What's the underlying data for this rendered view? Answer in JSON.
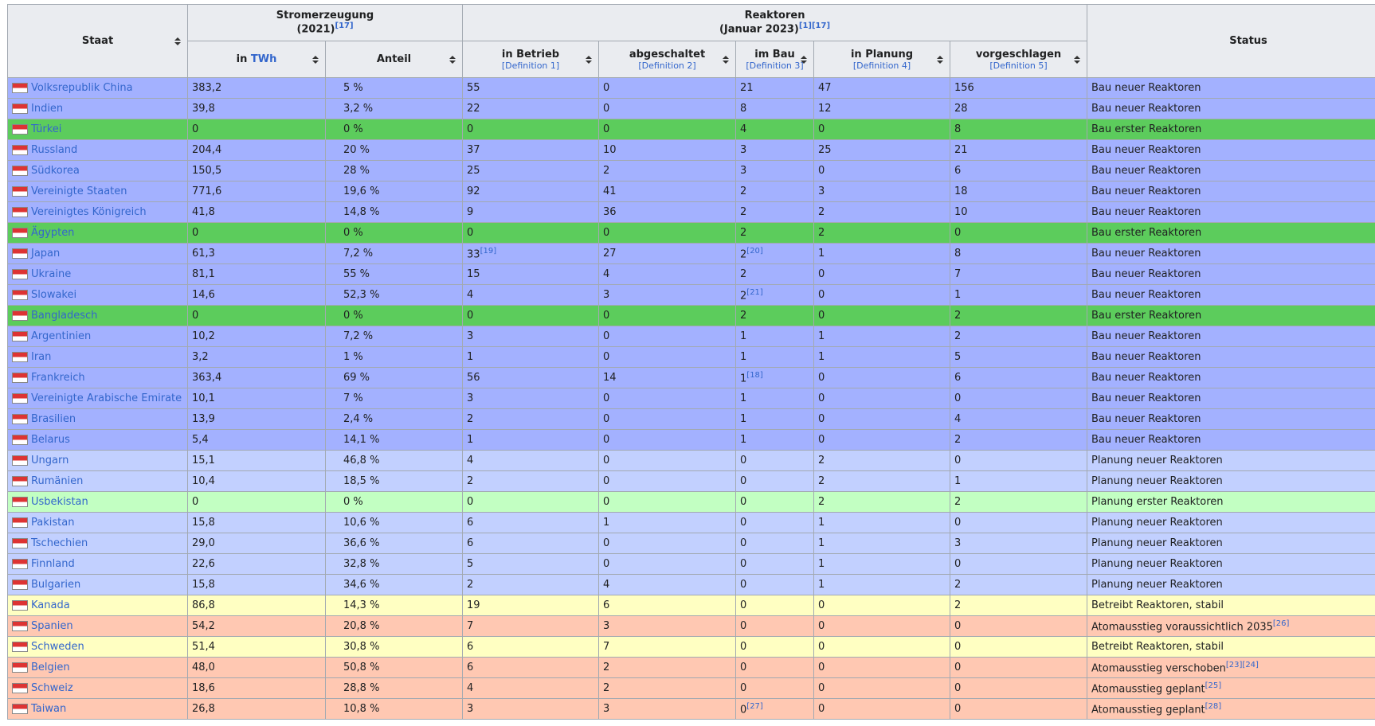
{
  "header": {
    "staat": "Staat",
    "strom": "Stromerzeugung",
    "strom_year": "(2021)",
    "strom_ref": "[17]",
    "reaktoren": "Reaktoren",
    "reaktoren_date": "(Januar 2023)",
    "reaktoren_refs": [
      "[1]",
      "[17]"
    ],
    "status": "Status",
    "sub": [
      {
        "text": "in ",
        "link": "TWh"
      },
      {
        "text": "Anteil"
      },
      {
        "text": "in Betrieb",
        "def": "[Definition 1]"
      },
      {
        "text": "abgeschaltet",
        "def": "[Definition 2]"
      },
      {
        "text": "im Bau",
        "def": "[Definition 3]"
      },
      {
        "text": "in Planung",
        "def": "[Definition 4]"
      },
      {
        "text": "vorgeschlagen",
        "def": "[Definition 5]"
      }
    ]
  },
  "rows": [
    {
      "country": "Volksrepublik China",
      "color": "#a3b1ff",
      "cells": [
        "383,2",
        "5 %",
        "55",
        "0",
        "21",
        "47",
        "156",
        "Bau neuer Reaktoren"
      ]
    },
    {
      "country": "Indien",
      "color": "#a3b1ff",
      "cells": [
        "39,8",
        "3,2 %",
        "22",
        "0",
        "8",
        "12",
        "28",
        "Bau neuer Reaktoren"
      ]
    },
    {
      "country": "Türkei",
      "color": "#5ccc5c",
      "cells": [
        "0",
        "0 %",
        "0",
        "0",
        "4",
        "0",
        "8",
        "Bau erster Reaktoren"
      ]
    },
    {
      "country": "Russland",
      "color": "#a3b1ff",
      "cells": [
        "204,4",
        "20 %",
        "37",
        "10",
        "3",
        "25",
        "21",
        "Bau neuer Reaktoren"
      ]
    },
    {
      "country": "Südkorea",
      "color": "#a3b1ff",
      "cells": [
        "150,5",
        "28 %",
        "25",
        "2",
        "3",
        "0",
        "6",
        "Bau neuer Reaktoren"
      ]
    },
    {
      "country": "Vereinigte Staaten",
      "color": "#a3b1ff",
      "cells": [
        "771,6",
        "19,6 %",
        "92",
        "41",
        "2",
        "3",
        "18",
        "Bau neuer Reaktoren"
      ]
    },
    {
      "country": "Vereinigtes Königreich",
      "color": "#a3b1ff",
      "cells": [
        "41,8",
        "14,8 %",
        "9",
        "36",
        "2",
        "2",
        "10",
        "Bau neuer Reaktoren"
      ]
    },
    {
      "country": "Ägypten",
      "color": "#5ccc5c",
      "cells": [
        "0",
        "0 %",
        "0",
        "0",
        "2",
        "2",
        "0",
        "Bau erster Reaktoren"
      ]
    },
    {
      "country": "Japan",
      "color": "#a3b1ff",
      "cells": [
        "61,3",
        "7,2 %",
        {
          "text": "33",
          "ref": "[19]"
        },
        "27",
        {
          "text": "2",
          "ref": "[20]"
        },
        "1",
        "8",
        "Bau neuer Reaktoren"
      ]
    },
    {
      "country": "Ukraine",
      "color": "#a3b1ff",
      "cells": [
        "81,1",
        "55 %",
        "15",
        "4",
        "2",
        "0",
        "7",
        "Bau neuer Reaktoren"
      ]
    },
    {
      "country": "Slowakei",
      "color": "#a3b1ff",
      "cells": [
        "14,6",
        "52,3 %",
        "4",
        "3",
        {
          "text": "2",
          "ref": "[21]"
        },
        "0",
        "1",
        "Bau neuer Reaktoren"
      ]
    },
    {
      "country": "Bangladesch",
      "color": "#5ccc5c",
      "cells": [
        "0",
        "0 %",
        "0",
        "0",
        "2",
        "0",
        "2",
        "Bau erster Reaktoren"
      ]
    },
    {
      "country": "Argentinien",
      "color": "#a3b1ff",
      "cells": [
        "10,2",
        "7,2 %",
        "3",
        "0",
        "1",
        "1",
        "2",
        "Bau neuer Reaktoren"
      ]
    },
    {
      "country": "Iran",
      "color": "#a3b1ff",
      "cells": [
        "3,2",
        "1 %",
        "1",
        "0",
        "1",
        "1",
        "5",
        "Bau neuer Reaktoren"
      ]
    },
    {
      "country": "Frankreich",
      "color": "#a3b1ff",
      "cells": [
        "363,4",
        "69 %",
        "56",
        "14",
        {
          "text": "1",
          "ref": "[18]"
        },
        "0",
        "6",
        "Bau neuer Reaktoren"
      ]
    },
    {
      "country": "Vereinigte Arabische Emirate",
      "color": "#a3b1ff",
      "cells": [
        "10,1",
        "7 %",
        "3",
        "0",
        "1",
        "0",
        "0",
        "Bau neuer Reaktoren"
      ]
    },
    {
      "country": "Brasilien",
      "color": "#a3b1ff",
      "cells": [
        "13,9",
        "2,4 %",
        "2",
        "0",
        "1",
        "0",
        "4",
        "Bau neuer Reaktoren"
      ]
    },
    {
      "country": "Belarus",
      "color": "#a3b1ff",
      "cells": [
        "5,4",
        "14,1 %",
        "1",
        "0",
        "1",
        "0",
        "2",
        "Bau neuer Reaktoren"
      ]
    },
    {
      "country": "Ungarn",
      "color": "#c2d0ff",
      "cells": [
        "15,1",
        "46,8 %",
        "4",
        "0",
        "0",
        "2",
        "0",
        "Planung neuer Reaktoren"
      ]
    },
    {
      "country": "Rumänien",
      "color": "#c2d0ff",
      "cells": [
        "10,4",
        "18,5 %",
        "2",
        "0",
        "0",
        "2",
        "1",
        "Planung neuer Reaktoren"
      ]
    },
    {
      "country": "Usbekistan",
      "color": "#c2ffc2",
      "cells": [
        "0",
        "0 %",
        "0",
        "0",
        "0",
        "2",
        "2",
        "Planung erster Reaktoren"
      ]
    },
    {
      "country": "Pakistan",
      "color": "#c2d0ff",
      "cells": [
        "15,8",
        "10,6 %",
        "6",
        "1",
        "0",
        "1",
        "0",
        "Planung neuer Reaktoren"
      ]
    },
    {
      "country": "Tschechien",
      "color": "#c2d0ff",
      "cells": [
        "29,0",
        "36,6 %",
        "6",
        "0",
        "0",
        "1",
        "3",
        "Planung neuer Reaktoren"
      ]
    },
    {
      "country": "Finnland",
      "color": "#c2d0ff",
      "cells": [
        "22,6",
        "32,8 %",
        "5",
        "0",
        "0",
        "1",
        "0",
        "Planung neuer Reaktoren"
      ]
    },
    {
      "country": "Bulgarien",
      "color": "#c2d0ff",
      "cells": [
        "15,8",
        "34,6 %",
        "2",
        "4",
        "0",
        "1",
        "2",
        "Planung neuer Reaktoren"
      ]
    },
    {
      "country": "Kanada",
      "color": "#ffffc2",
      "cells": [
        "86,8",
        "14,3 %",
        "19",
        "6",
        "0",
        "0",
        "2",
        "Betreibt Reaktoren, stabil"
      ]
    },
    {
      "country": "Spanien",
      "color": "#ffc8b2",
      "cells": [
        "54,2",
        "20,8 %",
        "7",
        "3",
        "0",
        "0",
        "0",
        {
          "text": "Atomausstieg voraussichtlich 2035",
          "ref": "[26]"
        }
      ]
    },
    {
      "country": "Schweden",
      "color": "#ffffc2",
      "cells": [
        "51,4",
        "30,8 %",
        "6",
        "7",
        "0",
        "0",
        "0",
        "Betreibt Reaktoren, stabil"
      ]
    },
    {
      "country": "Belgien",
      "color": "#ffc8b2",
      "cells": [
        "48,0",
        "50,8 %",
        "6",
        "2",
        "0",
        "0",
        "0",
        {
          "text": "Atomausstieg verschoben",
          "ref": "[23][24]"
        }
      ]
    },
    {
      "country": "Schweiz",
      "color": "#ffc8b2",
      "cells": [
        "18,6",
        "28,8 %",
        "4",
        "2",
        "0",
        "0",
        "0",
        {
          "text": "Atomausstieg geplant",
          "ref": "[25]"
        }
      ]
    },
    {
      "country": "Taiwan",
      "color": "#ffc8b2",
      "cells": [
        "26,8",
        "10,8 %",
        "3",
        "3",
        {
          "text": "0",
          "ref": "[27]"
        },
        "0",
        "0",
        {
          "text": "Atomausstieg geplant",
          "ref": "[28]"
        }
      ]
    }
  ]
}
